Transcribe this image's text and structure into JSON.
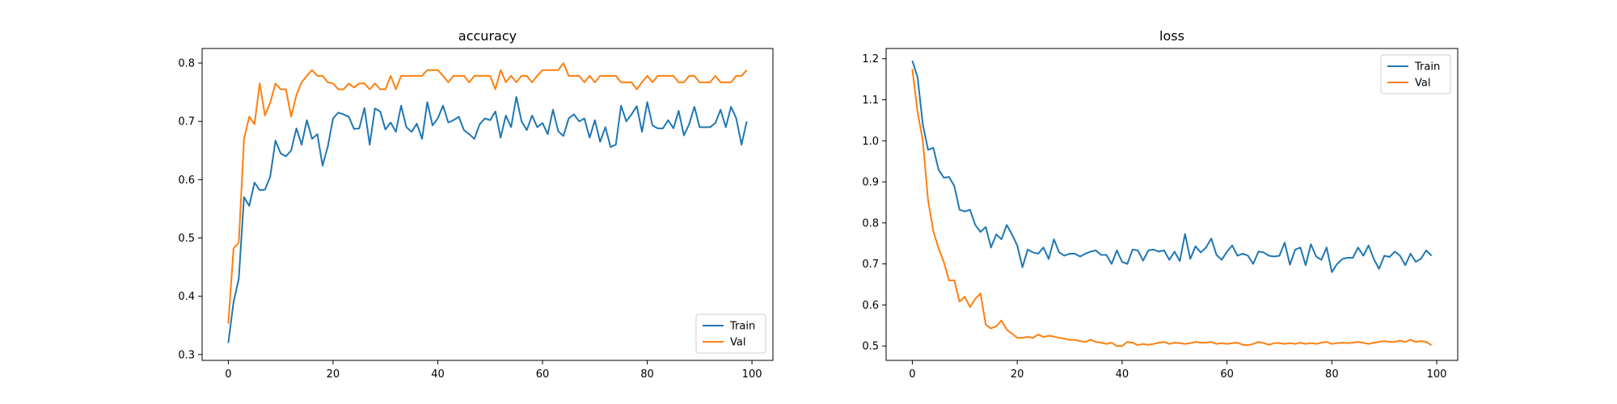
{
  "chart_data": [
    {
      "type": "line",
      "title": "accuracy",
      "xlabel": "",
      "ylabel": "",
      "xlim": [
        -5,
        104
      ],
      "ylim": [
        0.29,
        0.825
      ],
      "xticks": [
        0,
        20,
        40,
        60,
        80,
        100
      ],
      "yticks": [
        0.3,
        0.4,
        0.5,
        0.6,
        0.7,
        0.8
      ],
      "legend_position": "lower-right",
      "grid": false,
      "x": [
        0,
        1,
        2,
        3,
        4,
        5,
        6,
        7,
        8,
        9,
        10,
        11,
        12,
        13,
        14,
        15,
        16,
        17,
        18,
        19,
        20,
        21,
        22,
        23,
        24,
        25,
        26,
        27,
        28,
        29,
        30,
        31,
        32,
        33,
        34,
        35,
        36,
        37,
        38,
        39,
        40,
        41,
        42,
        43,
        44,
        45,
        46,
        47,
        48,
        49,
        50,
        51,
        52,
        53,
        54,
        55,
        56,
        57,
        58,
        59,
        60,
        61,
        62,
        63,
        64,
        65,
        66,
        67,
        68,
        69,
        70,
        71,
        72,
        73,
        74,
        75,
        76,
        77,
        78,
        79,
        80,
        81,
        82,
        83,
        84,
        85,
        86,
        87,
        88,
        89,
        90,
        91,
        92,
        93,
        94,
        95,
        96,
        97,
        98,
        99
      ],
      "series": [
        {
          "name": "Train",
          "color": "#1f77b4",
          "values": [
            0.32,
            0.39,
            0.43,
            0.57,
            0.555,
            0.595,
            0.582,
            0.583,
            0.605,
            0.667,
            0.645,
            0.64,
            0.65,
            0.688,
            0.66,
            0.702,
            0.67,
            0.678,
            0.624,
            0.657,
            0.705,
            0.715,
            0.712,
            0.708,
            0.687,
            0.688,
            0.723,
            0.66,
            0.722,
            0.717,
            0.686,
            0.698,
            0.682,
            0.727,
            0.69,
            0.682,
            0.696,
            0.67,
            0.733,
            0.693,
            0.705,
            0.727,
            0.698,
            0.702,
            0.708,
            0.685,
            0.678,
            0.67,
            0.695,
            0.705,
            0.702,
            0.717,
            0.672,
            0.71,
            0.69,
            0.742,
            0.7,
            0.685,
            0.71,
            0.69,
            0.697,
            0.678,
            0.72,
            0.683,
            0.675,
            0.705,
            0.712,
            0.7,
            0.705,
            0.672,
            0.702,
            0.665,
            0.69,
            0.656,
            0.66,
            0.727,
            0.7,
            0.712,
            0.726,
            0.682,
            0.733,
            0.693,
            0.688,
            0.688,
            0.702,
            0.688,
            0.718,
            0.676,
            0.695,
            0.725,
            0.69,
            0.69,
            0.69,
            0.697,
            0.72,
            0.69,
            0.725,
            0.705,
            0.66,
            0.7
          ]
        },
        {
          "name": "Val",
          "color": "#ff7f0e",
          "values": [
            0.353,
            0.482,
            0.492,
            0.67,
            0.708,
            0.695,
            0.765,
            0.71,
            0.732,
            0.765,
            0.755,
            0.755,
            0.708,
            0.745,
            0.767,
            0.778,
            0.788,
            0.778,
            0.778,
            0.767,
            0.765,
            0.755,
            0.755,
            0.765,
            0.758,
            0.765,
            0.765,
            0.755,
            0.765,
            0.755,
            0.755,
            0.778,
            0.755,
            0.778,
            0.778,
            0.778,
            0.778,
            0.778,
            0.788,
            0.788,
            0.788,
            0.778,
            0.767,
            0.778,
            0.778,
            0.778,
            0.767,
            0.778,
            0.778,
            0.778,
            0.778,
            0.755,
            0.788,
            0.767,
            0.778,
            0.767,
            0.778,
            0.778,
            0.767,
            0.778,
            0.788,
            0.788,
            0.788,
            0.788,
            0.8,
            0.778,
            0.778,
            0.778,
            0.767,
            0.778,
            0.767,
            0.778,
            0.778,
            0.778,
            0.778,
            0.767,
            0.767,
            0.767,
            0.755,
            0.767,
            0.778,
            0.767,
            0.778,
            0.778,
            0.778,
            0.778,
            0.767,
            0.767,
            0.778,
            0.778,
            0.767,
            0.767,
            0.767,
            0.778,
            0.767,
            0.767,
            0.767,
            0.778,
            0.778,
            0.788
          ]
        }
      ]
    },
    {
      "type": "line",
      "title": "loss",
      "xlabel": "",
      "ylabel": "",
      "xlim": [
        -5,
        104
      ],
      "ylim": [
        0.465,
        1.225
      ],
      "xticks": [
        0,
        20,
        40,
        60,
        80,
        100
      ],
      "yticks": [
        0.5,
        0.6,
        0.7,
        0.8,
        0.9,
        1.0,
        1.1,
        1.2
      ],
      "legend_position": "upper-right",
      "grid": false,
      "x": [
        0,
        1,
        2,
        3,
        4,
        5,
        6,
        7,
        8,
        9,
        10,
        11,
        12,
        13,
        14,
        15,
        16,
        17,
        18,
        19,
        20,
        21,
        22,
        23,
        24,
        25,
        26,
        27,
        28,
        29,
        30,
        31,
        32,
        33,
        34,
        35,
        36,
        37,
        38,
        39,
        40,
        41,
        42,
        43,
        44,
        45,
        46,
        47,
        48,
        49,
        50,
        51,
        52,
        53,
        54,
        55,
        56,
        57,
        58,
        59,
        60,
        61,
        62,
        63,
        64,
        65,
        66,
        67,
        68,
        69,
        70,
        71,
        72,
        73,
        74,
        75,
        76,
        77,
        78,
        79,
        80,
        81,
        82,
        83,
        84,
        85,
        86,
        87,
        88,
        89,
        90,
        91,
        92,
        93,
        94,
        95,
        96,
        97,
        98,
        99
      ],
      "series": [
        {
          "name": "Train",
          "color": "#1f77b4",
          "values": [
            1.195,
            1.155,
            1.04,
            0.978,
            0.983,
            0.93,
            0.91,
            0.912,
            0.89,
            0.832,
            0.828,
            0.832,
            0.795,
            0.778,
            0.79,
            0.74,
            0.772,
            0.76,
            0.795,
            0.772,
            0.745,
            0.692,
            0.735,
            0.728,
            0.725,
            0.74,
            0.712,
            0.76,
            0.728,
            0.72,
            0.725,
            0.725,
            0.718,
            0.725,
            0.73,
            0.733,
            0.722,
            0.722,
            0.7,
            0.733,
            0.705,
            0.7,
            0.735,
            0.733,
            0.708,
            0.733,
            0.735,
            0.73,
            0.733,
            0.71,
            0.73,
            0.707,
            0.773,
            0.712,
            0.743,
            0.728,
            0.74,
            0.762,
            0.722,
            0.71,
            0.73,
            0.745,
            0.72,
            0.725,
            0.72,
            0.7,
            0.73,
            0.728,
            0.72,
            0.718,
            0.72,
            0.752,
            0.698,
            0.735,
            0.74,
            0.697,
            0.748,
            0.718,
            0.71,
            0.74,
            0.68,
            0.7,
            0.712,
            0.715,
            0.715,
            0.74,
            0.72,
            0.745,
            0.712,
            0.688,
            0.72,
            0.717,
            0.73,
            0.72,
            0.697,
            0.725,
            0.705,
            0.713,
            0.733,
            0.72
          ]
        },
        {
          "name": "Val",
          "color": "#ff7f0e",
          "values": [
            1.175,
            1.07,
            1.0,
            0.855,
            0.78,
            0.738,
            0.705,
            0.66,
            0.66,
            0.608,
            0.62,
            0.595,
            0.615,
            0.628,
            0.552,
            0.543,
            0.548,
            0.562,
            0.54,
            0.53,
            0.52,
            0.52,
            0.522,
            0.52,
            0.528,
            0.522,
            0.525,
            0.523,
            0.52,
            0.518,
            0.515,
            0.515,
            0.512,
            0.51,
            0.515,
            0.51,
            0.508,
            0.505,
            0.508,
            0.5,
            0.5,
            0.51,
            0.508,
            0.502,
            0.505,
            0.503,
            0.505,
            0.508,
            0.51,
            0.505,
            0.508,
            0.507,
            0.505,
            0.507,
            0.51,
            0.508,
            0.508,
            0.51,
            0.505,
            0.507,
            0.505,
            0.507,
            0.508,
            0.503,
            0.502,
            0.505,
            0.51,
            0.507,
            0.503,
            0.507,
            0.507,
            0.505,
            0.507,
            0.505,
            0.508,
            0.505,
            0.507,
            0.505,
            0.508,
            0.51,
            0.505,
            0.507,
            0.508,
            0.507,
            0.508,
            0.51,
            0.508,
            0.505,
            0.508,
            0.51,
            0.512,
            0.51,
            0.51,
            0.513,
            0.51,
            0.515,
            0.51,
            0.512,
            0.51,
            0.502
          ]
        }
      ]
    }
  ]
}
